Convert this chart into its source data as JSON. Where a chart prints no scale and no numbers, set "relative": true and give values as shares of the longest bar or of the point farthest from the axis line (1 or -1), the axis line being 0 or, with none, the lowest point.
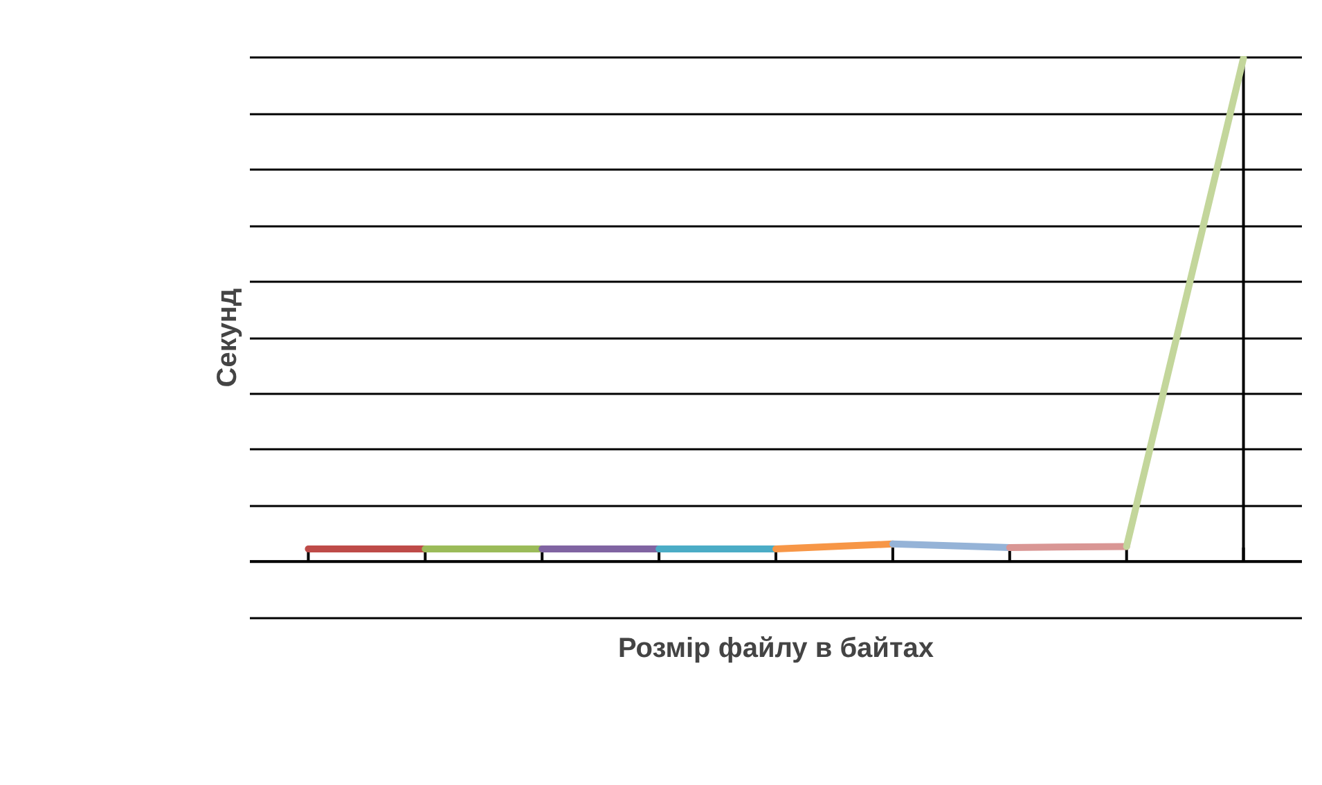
{
  "chart_data": {
    "type": "line",
    "relative": true,
    "xlabel": "Розмір файлу в байтах",
    "ylabel": "Секунд",
    "grid": "y",
    "categories": [
      null,
      null,
      null,
      null,
      null,
      null,
      null,
      null,
      null
    ],
    "series": [
      {
        "color": "#be4b48",
        "values": [
          0.025,
          0.025,
          null,
          null,
          null,
          null,
          null,
          null,
          null
        ]
      },
      {
        "color": "#9bbb59",
        "values": [
          null,
          0.025,
          0.025,
          null,
          null,
          null,
          null,
          null,
          null
        ]
      },
      {
        "color": "#8064a2",
        "values": [
          null,
          null,
          0.025,
          0.025,
          null,
          null,
          null,
          null,
          null
        ]
      },
      {
        "color": "#4bacc6",
        "values": [
          null,
          null,
          null,
          0.025,
          0.025,
          null,
          null,
          null,
          null
        ]
      },
      {
        "color": "#f79646",
        "values": [
          null,
          null,
          null,
          null,
          0.025,
          0.035,
          null,
          null,
          null
        ]
      },
      {
        "color": "#95b3d7",
        "values": [
          null,
          null,
          null,
          null,
          null,
          0.035,
          0.028,
          null,
          null
        ]
      },
      {
        "color": "#d99694",
        "values": [
          null,
          null,
          null,
          null,
          null,
          null,
          0.028,
          0.03,
          null
        ]
      },
      {
        "color": "#c3d69b",
        "values": [
          null,
          null,
          null,
          null,
          null,
          null,
          null,
          0.03,
          1
        ]
      }
    ]
  }
}
